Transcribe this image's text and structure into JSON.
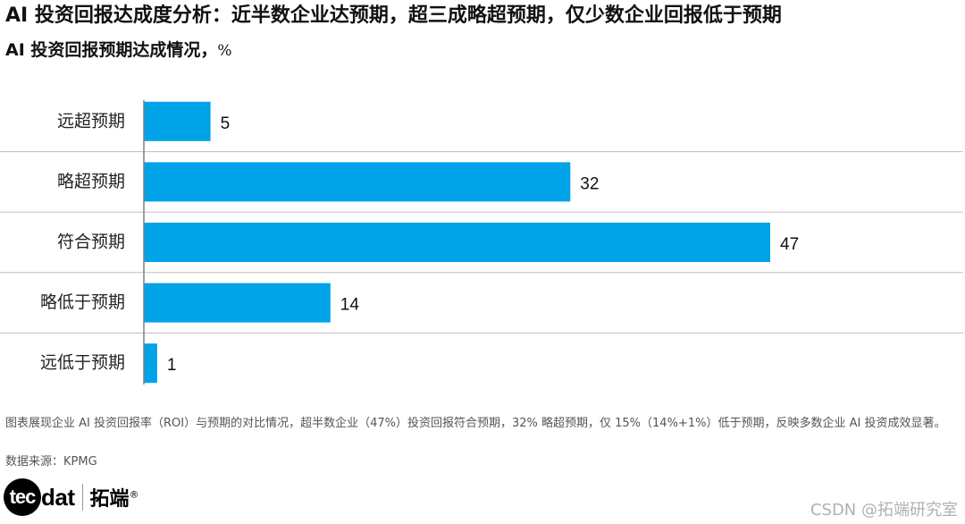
{
  "title": "AI 投资回报达成度分析：近半数企业达预期，超三成略超预期，仅少数企业回报低于预期",
  "subtitle": "AI 投资回报预期达成情况，",
  "subtitle_unit": "%",
  "note": "图表展现企业 AI 投资回报率（ROI）与预期的对比情况，超半数企业（47%）投资回报符合预期，32% 略超预期，仅 15%（14%+1%）低于预期，反映多数企业 AI 投资成效显著。",
  "source": "数据来源：KPMG",
  "logo": {
    "circle_text": "tec",
    "rest_text": "dat",
    "cn_text": "拓端",
    "reg": "®"
  },
  "watermark": "CSDN @拓端研究室",
  "colors": {
    "bar": "#00A3E8",
    "divider": "#BFBFBF",
    "axis": "#808080"
  },
  "chart_data": {
    "type": "bar",
    "orientation": "horizontal",
    "title": "AI 投资回报预期达成情况",
    "unit": "%",
    "categories": [
      "远超预期",
      "略超预期",
      "符合预期",
      "略低于预期",
      "远低于预期"
    ],
    "values": [
      5,
      32,
      47,
      14,
      1
    ],
    "xlim": [
      0,
      47
    ],
    "grid": false,
    "data_labels": true
  }
}
